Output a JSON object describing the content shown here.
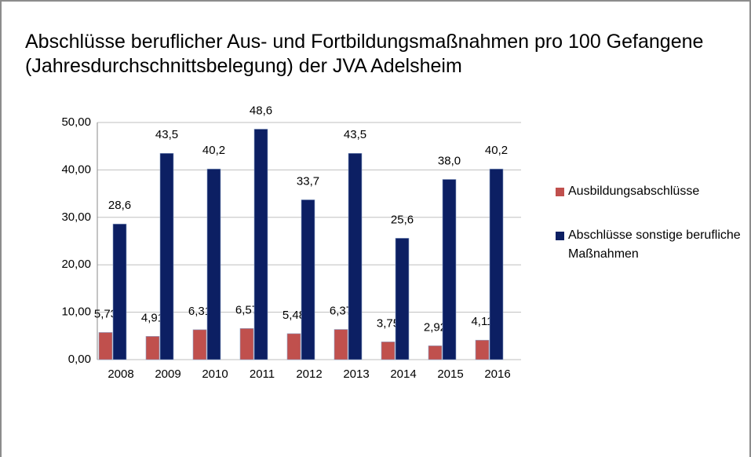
{
  "chart_data": {
    "type": "bar",
    "title": "Abschlüsse  beruflicher  Aus- und Fortbildungsmaßnahmen  pro 100 Gefangene (Jahresdurchschnittsbelegung) der JVA Adelsheim",
    "categories": [
      "2008",
      "2009",
      "2010",
      "2011",
      "2012",
      "2013",
      "2014",
      "2015",
      "2016"
    ],
    "series": [
      {
        "name": "Ausbildungsabschlüsse",
        "color": "#c0504d",
        "values": [
          5.73,
          4.91,
          6.31,
          6.57,
          5.48,
          6.37,
          3.75,
          2.92,
          4.11
        ],
        "value_labels": [
          "5,73",
          "4,91",
          "6,31",
          "6,57",
          "5,48",
          "6,37",
          "3,75",
          "2,92",
          "4,11"
        ]
      },
      {
        "name": "Abschlüsse sonstige berufliche Maßnahmen",
        "color": "#0c1f63",
        "values": [
          28.6,
          43.5,
          40.2,
          48.6,
          33.7,
          43.5,
          25.6,
          38.0,
          40.2
        ],
        "value_labels": [
          "28,6",
          "43,5",
          "40,2",
          "48,6",
          "33,7",
          "43,5",
          "25,6",
          "38,0",
          "40,2"
        ]
      }
    ],
    "ylim": [
      0,
      50
    ],
    "yticks": [
      {
        "value": 0,
        "label": "0,00"
      },
      {
        "value": 10,
        "label": "10,00"
      },
      {
        "value": 20,
        "label": "20,00"
      },
      {
        "value": 30,
        "label": "30,00"
      },
      {
        "value": 40,
        "label": "40,00"
      },
      {
        "value": 50,
        "label": "50,00"
      }
    ],
    "grid": true,
    "legend": "right"
  }
}
